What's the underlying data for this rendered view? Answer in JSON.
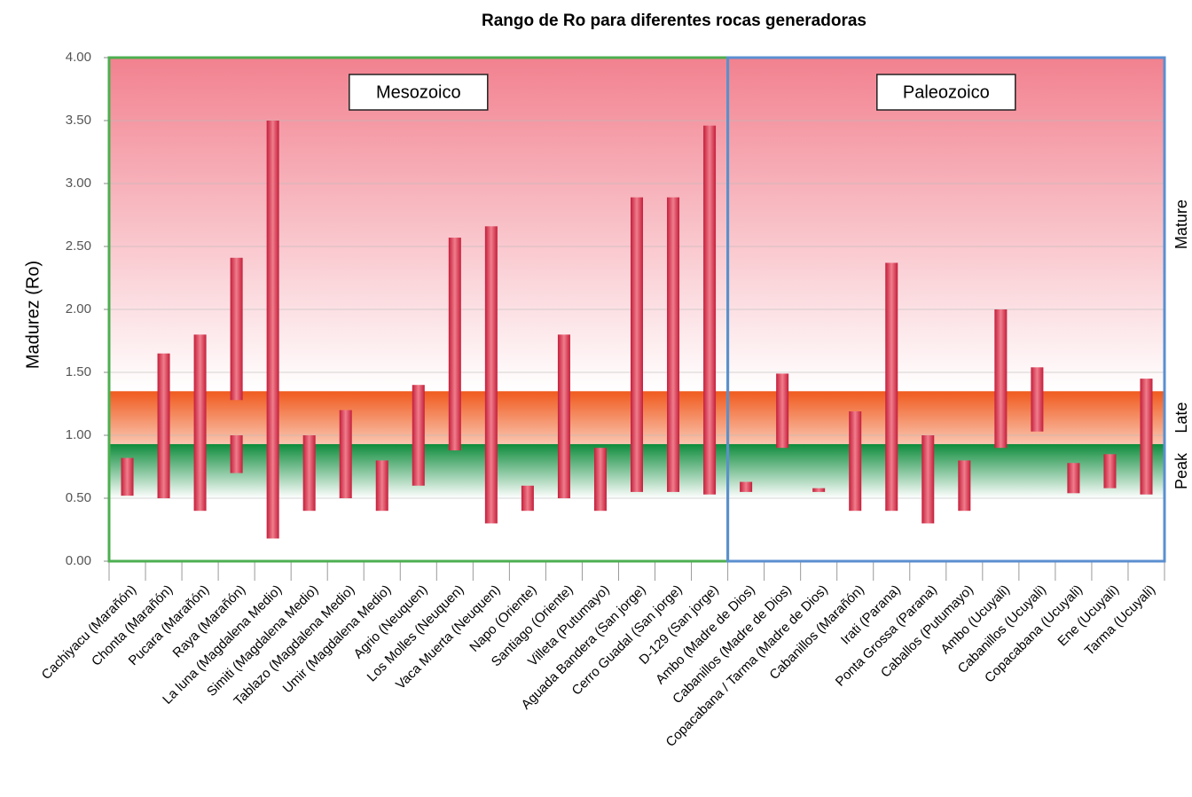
{
  "chart_data": {
    "type": "range-bar",
    "title": "Rango de Ro para diferentes rocas generadoras",
    "y_label": "Madurez (Ro)",
    "categories": [
      "Cachiyacu (Marañón)",
      "Chonta (Marañón)",
      "Pucara (Marañón)",
      "Raya (Marañón)",
      "La luna (Magdalena Medio)",
      "Simiti (Magdalena Medio)",
      "Tablazo (Magdalena Medio)",
      "Umir (Magdalena Medio)",
      "Agrio (Neuquen)",
      "Los Molles (Neuquen)",
      "Vaca Muerta (Neuquen)",
      "Napo (Oriente)",
      "Santiago (Oriente)",
      "Villeta (Putumayo)",
      "Aguada Bandera (San jorge)",
      "Cerro Guadal (San jorge)",
      "D-129 (San jorge)",
      "Ambo (Madre de Dios)",
      "Cabanillos (Madre de Dios)",
      "Copacabana / Tarma (Madre de Dios)",
      "Cabanillos (Marañón)",
      "Irati (Parana)",
      "Ponta Grossa (Parana)",
      "Caballos (Putumayo)",
      "Ambo (Ucuyali)",
      "Cabanillos (Ucuyali)",
      "Copacabana (Ucuyali)",
      "Ene (Ucuyali)",
      "Tarma (Ucuyali)"
    ],
    "values": [
      [
        [
          0.52,
          0.82
        ]
      ],
      [
        [
          0.5,
          1.65
        ]
      ],
      [
        [
          0.4,
          1.8
        ]
      ],
      [
        [
          0.7,
          1.0
        ],
        [
          1.28,
          2.41
        ]
      ],
      [
        [
          0.18,
          3.5
        ]
      ],
      [
        [
          0.4,
          1.0
        ]
      ],
      [
        [
          0.5,
          1.2
        ]
      ],
      [
        [
          0.4,
          0.8
        ]
      ],
      [
        [
          0.6,
          1.4
        ]
      ],
      [
        [
          0.88,
          2.57
        ]
      ],
      [
        [
          0.3,
          2.66
        ]
      ],
      [
        [
          0.4,
          0.6
        ]
      ],
      [
        [
          0.5,
          1.8
        ]
      ],
      [
        [
          0.4,
          0.9
        ]
      ],
      [
        [
          0.55,
          2.89
        ]
      ],
      [
        [
          0.55,
          2.89
        ]
      ],
      [
        [
          0.53,
          3.46
        ]
      ],
      [
        [
          0.55,
          0.63
        ]
      ],
      [
        [
          0.9,
          1.49
        ]
      ],
      [
        [
          0.55,
          0.58
        ]
      ],
      [
        [
          0.4,
          1.19
        ]
      ],
      [
        [
          0.4,
          2.37
        ]
      ],
      [
        [
          0.3,
          1.0
        ]
      ],
      [
        [
          0.4,
          0.8
        ]
      ],
      [
        [
          0.9,
          2.0
        ]
      ],
      [
        [
          1.03,
          1.54
        ]
      ],
      [
        [
          0.54,
          0.78
        ]
      ],
      [
        [
          0.58,
          0.85
        ]
      ],
      [
        [
          0.53,
          1.45
        ]
      ]
    ],
    "ylim": [
      0,
      4
    ],
    "yticks": [
      {
        "value": 0,
        "label": "0.00"
      },
      {
        "value": 0.5,
        "label": "0.50"
      },
      {
        "value": 1,
        "label": "1.00"
      },
      {
        "value": 1.5,
        "label": "1.50"
      },
      {
        "value": 2,
        "label": "2.00"
      },
      {
        "value": 2.5,
        "label": "2.50"
      },
      {
        "value": 3,
        "label": "3.00"
      },
      {
        "value": 3.5,
        "label": "3.50"
      },
      {
        "value": 4,
        "label": "4.00"
      }
    ],
    "zones": [
      {
        "label": "Peak",
        "range": [
          0.5,
          0.93
        ],
        "color": "#0e8c3c"
      },
      {
        "label": "Late",
        "range": [
          0.93,
          1.35
        ],
        "color": "#f05a1e"
      },
      {
        "label": "Mature",
        "range": [
          1.35,
          4
        ],
        "color": "#f2818f"
      }
    ],
    "groups": [
      {
        "label": "Mesozoico",
        "count": 17,
        "color": "#4caf50"
      },
      {
        "label": "Paleozoico",
        "count": 12,
        "color": "#5b8fd0"
      }
    ],
    "grid": true
  }
}
